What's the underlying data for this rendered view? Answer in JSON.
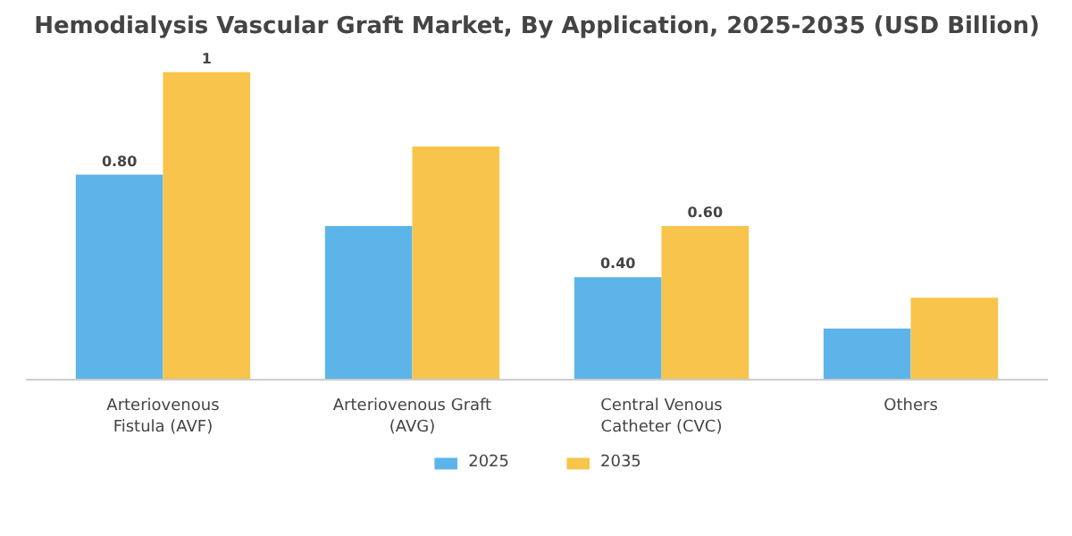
{
  "chart_data": {
    "type": "bar",
    "title": "Hemodialysis Vascular Graft Market, By Application, 2025-2035 (USD Billion)",
    "categories": [
      "Arteriovenous\nFistula (AVF)",
      "Arteriovenous Graft\n(AVG)",
      "Central Venous\nCatheter (CVC)",
      "Others"
    ],
    "series": [
      {
        "name": "2025",
        "color": "#5db4e8",
        "values": [
          0.8,
          0.6,
          0.4,
          0.2
        ],
        "value_labels": [
          "0.80",
          null,
          "0.40",
          null
        ]
      },
      {
        "name": "2035",
        "color": "#f9c44c",
        "values": [
          1.2,
          0.91,
          0.6,
          0.32
        ],
        "value_labels": [
          "1",
          null,
          "0.60",
          null
        ]
      }
    ],
    "tick_labels": "x",
    "legend": "bottom"
  }
}
